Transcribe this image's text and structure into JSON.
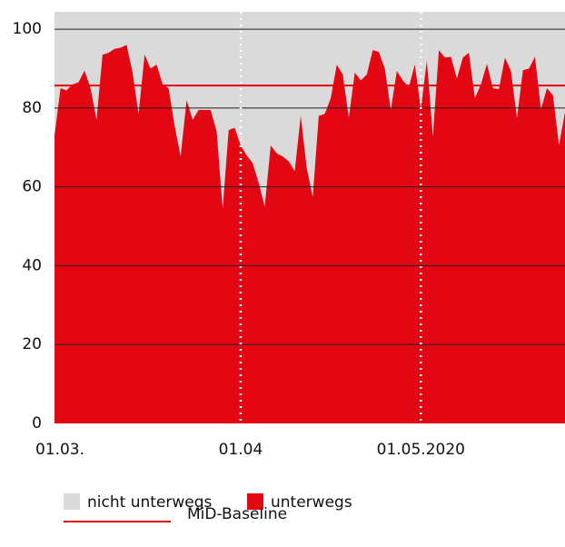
{
  "chart_data": {
    "type": "area",
    "x": [
      0,
      1,
      2,
      3,
      4,
      5,
      6,
      7,
      8,
      9,
      10,
      11,
      12,
      13,
      14,
      15,
      16,
      17,
      18,
      19,
      20,
      21,
      22,
      23,
      24,
      25,
      26,
      27,
      28,
      29,
      30,
      31,
      32,
      33,
      34,
      35,
      36,
      37,
      38,
      39,
      40,
      41,
      42,
      43,
      44,
      45,
      46,
      47,
      48,
      49,
      50,
      51,
      52,
      53,
      54,
      55,
      56,
      57,
      58,
      59,
      60,
      61,
      62,
      63,
      64,
      65,
      66,
      67,
      68,
      69,
      70,
      71,
      72,
      73,
      74,
      75,
      76,
      77,
      78,
      79,
      80,
      81,
      82,
      83,
      84,
      85
    ],
    "series": [
      {
        "name": "unterwegs",
        "color": "#e30613",
        "values": [
          73,
          85,
          84.5,
          86,
          86.5,
          89.5,
          85,
          77,
          93.5,
          94,
          95,
          95.3,
          96,
          89,
          78.5,
          93.5,
          90,
          91,
          86,
          85,
          75.5,
          67.7,
          82,
          77,
          79.5,
          79.5,
          79.5,
          74,
          54.4,
          74.4,
          75,
          70.5,
          68,
          66,
          61,
          55,
          70.5,
          68.5,
          67.7,
          66.5,
          64,
          78,
          64.7,
          57.4,
          78,
          78.5,
          82.5,
          91,
          88.5,
          77.5,
          89,
          87,
          88.5,
          94.7,
          94.2,
          90,
          79.5,
          89.4,
          87,
          85.3,
          91,
          79.7,
          92,
          72.8,
          94.7,
          92.8,
          93,
          87.5,
          92.8,
          94,
          82.5,
          86,
          91.2,
          85,
          84.8,
          92.8,
          89.4,
          77.4,
          89.6,
          90,
          93,
          79.7,
          85,
          83.2,
          70.5,
          79
        ]
      }
    ],
    "background_series": {
      "name": "nicht unterwegs",
      "color": "#dadada"
    },
    "baseline": {
      "name": "MiD-Baseline",
      "value": 85.7,
      "color": "#e30613"
    },
    "xlim": [
      0,
      85
    ],
    "xticks": [
      {
        "value": 0,
        "label": "01.03."
      },
      {
        "value": 31,
        "label": "01.04"
      },
      {
        "value": 61,
        "label": "01.05.2020"
      }
    ],
    "vlines": [
      31,
      61
    ],
    "ylim": [
      0,
      104.4
    ],
    "yticks": [
      0,
      20,
      40,
      60,
      80,
      100
    ],
    "grid": true
  }
}
